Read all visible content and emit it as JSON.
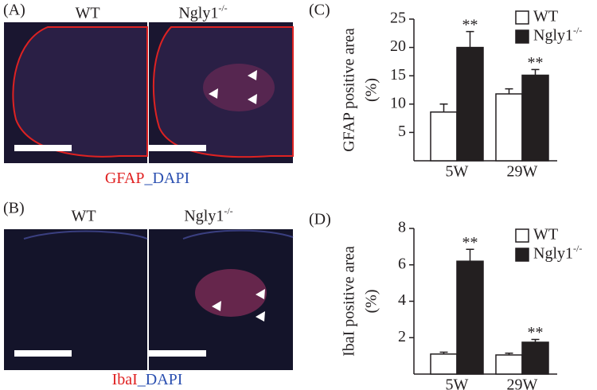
{
  "panels": [
    {
      "label": "(A)",
      "titles": [
        "WT",
        "Ngly1-/-"
      ],
      "caption": [
        "GFAP",
        "_DAPI"
      ]
    },
    {
      "label": "(B)",
      "titles": [
        "WT",
        "Ngly1-/-"
      ],
      "caption": [
        "IbaI",
        "_DAPI"
      ]
    }
  ],
  "chart_data": [
    {
      "type": "bar",
      "label": "(C)",
      "ylabel": [
        "GFAP positive area",
        "(%)"
      ],
      "categories": [
        "5W",
        "29W"
      ],
      "ylim": [
        0,
        25
      ],
      "yticks": [
        5,
        10,
        15,
        20,
        25
      ],
      "series": [
        {
          "name": "WT",
          "color": "#ffffff",
          "values": [
            8.6,
            11.8
          ],
          "errors": [
            1.4,
            0.9
          ]
        },
        {
          "name": "Ngly1-/-",
          "color": "#231f20",
          "values": [
            20,
            15.1
          ],
          "errors": [
            2.8,
            1.0
          ],
          "significance": [
            "**",
            "**"
          ]
        }
      ]
    },
    {
      "type": "bar",
      "label": "(D)",
      "ylabel": [
        "IbaI positive area",
        "(%)"
      ],
      "categories": [
        "5W",
        "29W"
      ],
      "ylim": [
        0,
        8
      ],
      "yticks": [
        2,
        4,
        6,
        8
      ],
      "series": [
        {
          "name": "WT",
          "color": "#ffffff",
          "values": [
            1.1,
            1.05
          ],
          "errors": [
            0.1,
            0.1
          ]
        },
        {
          "name": "Ngly1-/-",
          "color": "#231f20",
          "values": [
            6.2,
            1.75
          ],
          "errors": [
            0.65,
            0.15
          ],
          "significance": [
            "**",
            "**"
          ]
        }
      ]
    }
  ]
}
